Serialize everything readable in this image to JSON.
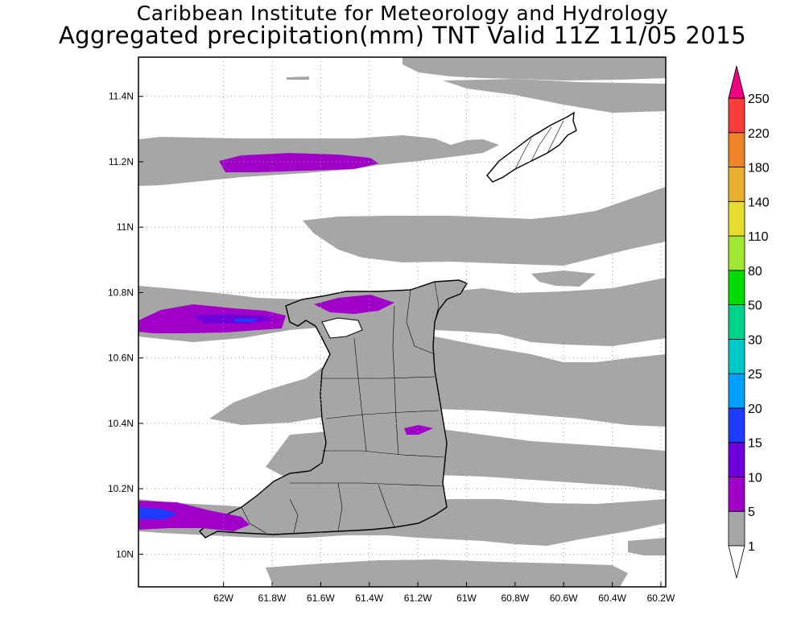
{
  "title": {
    "line1": "Caribbean Institute for Meteorology and Hydrology",
    "line2": "Aggregated precipitation(mm) TNT Valid 11Z 11/05 2015"
  },
  "map": {
    "lon_range": [
      -62.35,
      -60.18
    ],
    "lat_range": [
      9.9,
      11.52
    ],
    "x_ticks": [
      {
        "value": -62.0,
        "label": "62W"
      },
      {
        "value": -61.8,
        "label": "61.8W"
      },
      {
        "value": -61.6,
        "label": "61.6W"
      },
      {
        "value": -61.4,
        "label": "61.4W"
      },
      {
        "value": -61.2,
        "label": "61.2W"
      },
      {
        "value": -61.0,
        "label": "61W"
      },
      {
        "value": -60.8,
        "label": "60.8W"
      },
      {
        "value": -60.6,
        "label": "60.6W"
      },
      {
        "value": -60.4,
        "label": "60.4W"
      },
      {
        "value": -60.2,
        "label": "60.2W"
      }
    ],
    "y_ticks": [
      {
        "value": 10.0,
        "label": "10N"
      },
      {
        "value": 10.2,
        "label": "10.2N"
      },
      {
        "value": 10.4,
        "label": "10.4N"
      },
      {
        "value": 10.6,
        "label": "10.6N"
      },
      {
        "value": 10.8,
        "label": "10.8N"
      },
      {
        "value": 11.0,
        "label": "11N"
      },
      {
        "value": 11.2,
        "label": "11.2N"
      },
      {
        "value": 11.4,
        "label": "11.4N"
      }
    ],
    "grid": "dotted"
  },
  "colorbar": {
    "levels": [
      {
        "label": "1",
        "color": "#ffffff"
      },
      {
        "label": "5",
        "color": "#a6a6a6"
      },
      {
        "label": "10",
        "color": "#a000c8"
      },
      {
        "label": "15",
        "color": "#6e00dc"
      },
      {
        "label": "20",
        "color": "#1e3cff"
      },
      {
        "label": "25",
        "color": "#00a0ff"
      },
      {
        "label": "30",
        "color": "#00c8c8"
      },
      {
        "label": "50",
        "color": "#00d28c"
      },
      {
        "label": "80",
        "color": "#00dc00"
      },
      {
        "label": "110",
        "color": "#a0e632"
      },
      {
        "label": "140",
        "color": "#e6dc32"
      },
      {
        "label": "180",
        "color": "#e6af2d"
      },
      {
        "label": "220",
        "color": "#f08228"
      },
      {
        "label": "250",
        "color": "#fa3c3c"
      }
    ],
    "top_color": "#f00082",
    "bottom_color": "#ffffff"
  },
  "colors": {
    "rain_light": "#a6a6a6",
    "rain_moderate": "#a000c8",
    "rain_heavy": "#6e00dc",
    "rain_strong": "#1e3cff"
  }
}
